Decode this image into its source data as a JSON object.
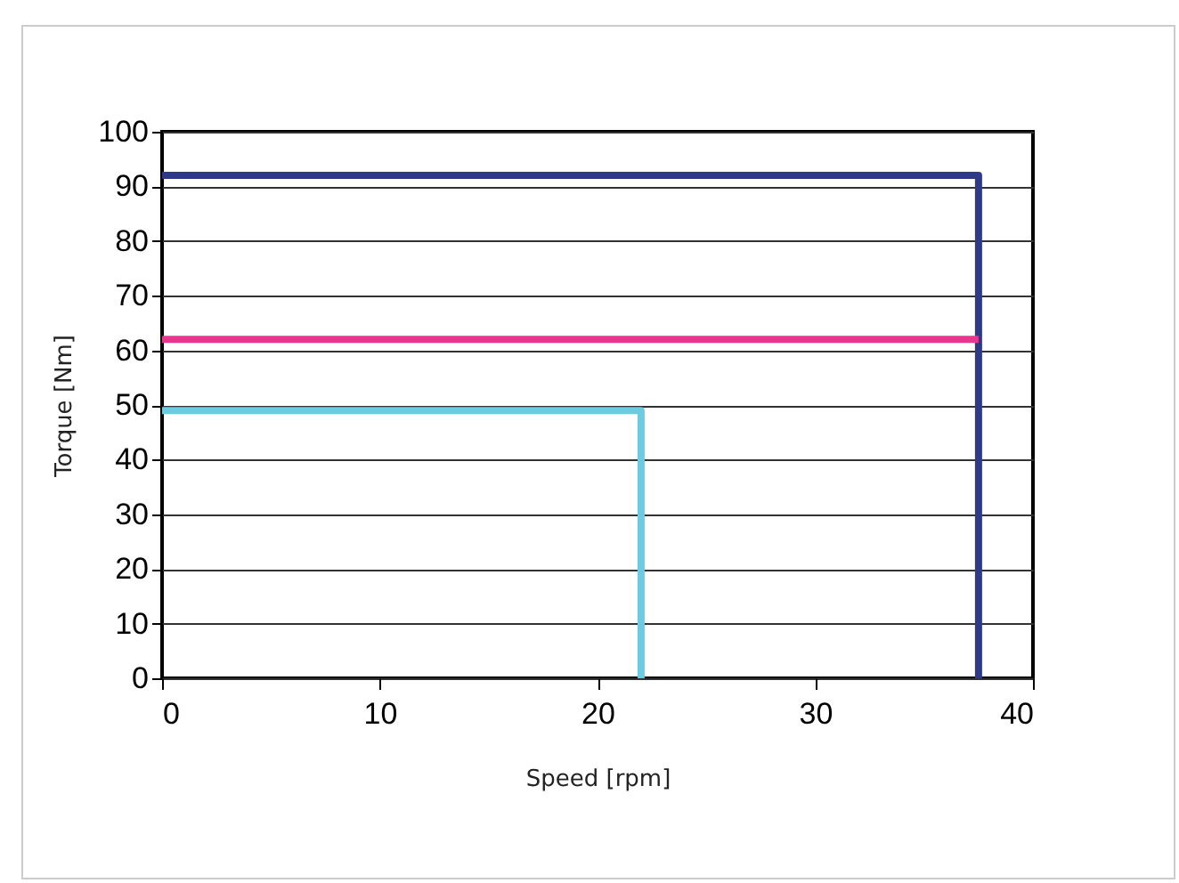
{
  "chart_data": {
    "type": "line",
    "xlabel": "Speed [rpm]",
    "ylabel": "Torque [Nm]",
    "series": [
      {
        "color": "#2e3a87",
        "x": [
          0,
          37.5,
          37.5
        ],
        "values": [
          92,
          92,
          0
        ]
      },
      {
        "color": "#e8368f",
        "x": [
          0,
          37.5
        ],
        "values": [
          62,
          62
        ]
      },
      {
        "color": "#6ccbe0",
        "x": [
          0,
          22,
          22
        ],
        "values": [
          49,
          49,
          0
        ]
      }
    ],
    "xlim": [
      0,
      40
    ],
    "xticks": [
      0,
      10,
      20,
      30,
      40
    ],
    "ylim": [
      0,
      100
    ],
    "yticks": [
      0,
      10,
      20,
      30,
      40,
      50,
      60,
      70,
      80,
      90,
      100
    ],
    "grid": "y",
    "legend": false,
    "marker": "none",
    "line_style": "solid"
  }
}
